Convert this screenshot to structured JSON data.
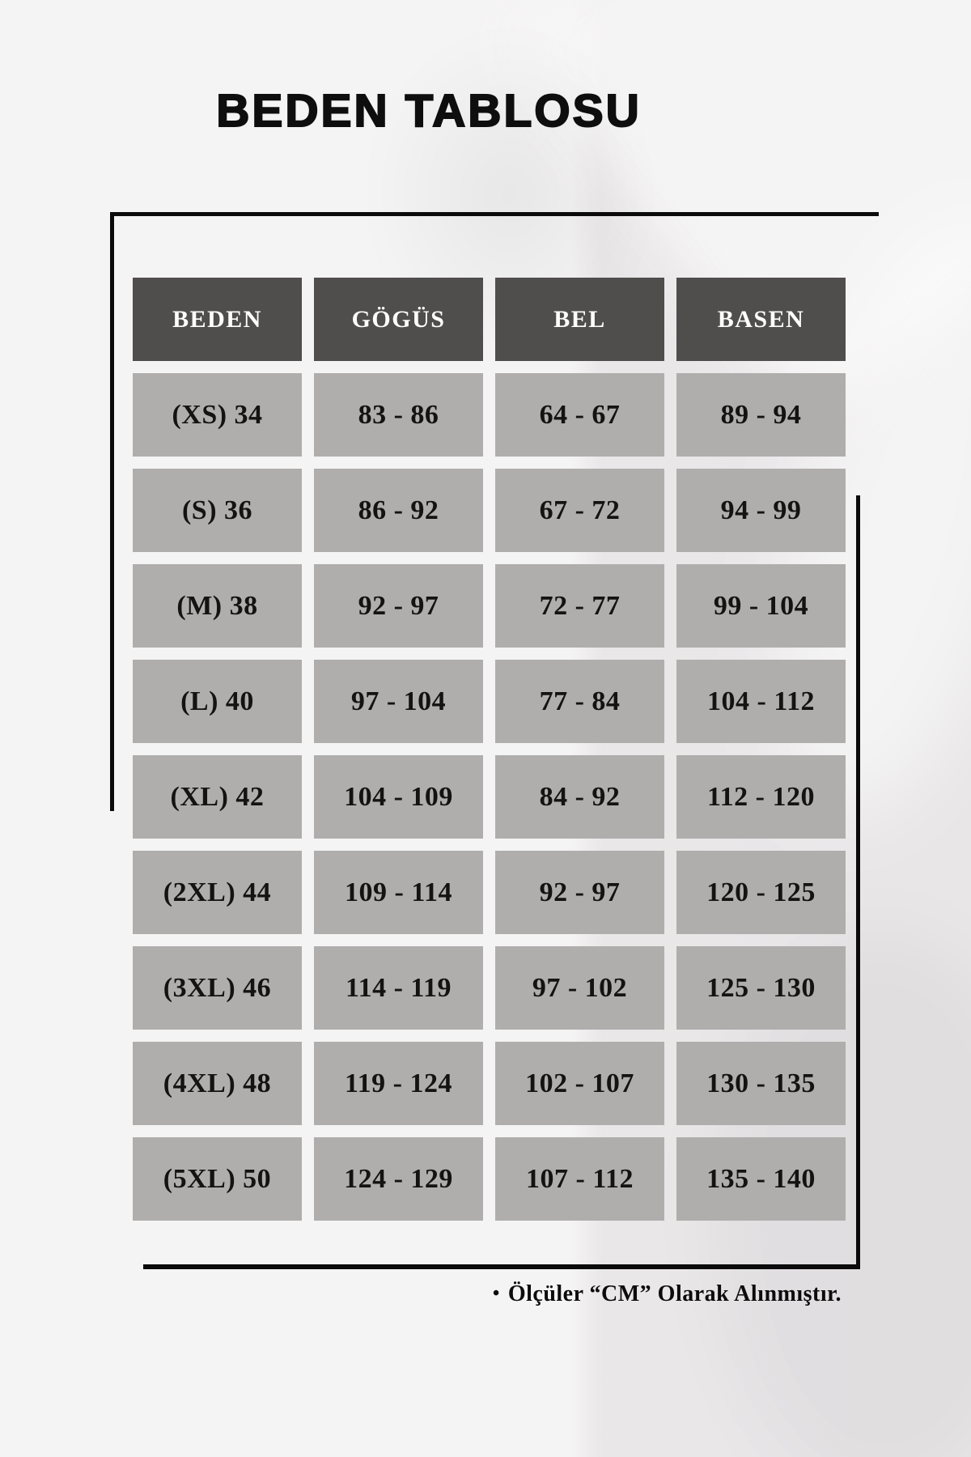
{
  "title": "BEDEN TABLOSU",
  "table": {
    "headers": [
      "BEDEN",
      "GÖGÜS",
      "BEL",
      "BASEN"
    ],
    "rows": [
      [
        "(XS) 34",
        "83 - 86",
        "64 - 67",
        "89 - 94"
      ],
      [
        "(S) 36",
        "86 - 92",
        "67 - 72",
        "94 - 99"
      ],
      [
        "(M) 38",
        "92 - 97",
        "72 - 77",
        "99 - 104"
      ],
      [
        "(L) 40",
        "97 - 104",
        "77 - 84",
        "104 - 112"
      ],
      [
        "(XL) 42",
        "104 - 109",
        "84 - 92",
        "112 - 120"
      ],
      [
        "(2XL) 44",
        "109 - 114",
        "92 - 97",
        "120 - 125"
      ],
      [
        "(3XL) 46",
        "114 - 119",
        "97 - 102",
        "125 - 130"
      ],
      [
        "(4XL) 48",
        "119 - 124",
        "102 - 107",
        "130 - 135"
      ],
      [
        "(5XL) 50",
        "124 - 129",
        "107 - 112",
        "135 - 140"
      ]
    ]
  },
  "footer": {
    "bullet": "•",
    "note": "Ölçüler “CM” Olarak Alınmıştır."
  },
  "colors": {
    "header_bg": "#504d4d",
    "cell_bg": "#b0adad",
    "line_color": "#0b0b0b",
    "page_bg": "#f5f4f4"
  }
}
